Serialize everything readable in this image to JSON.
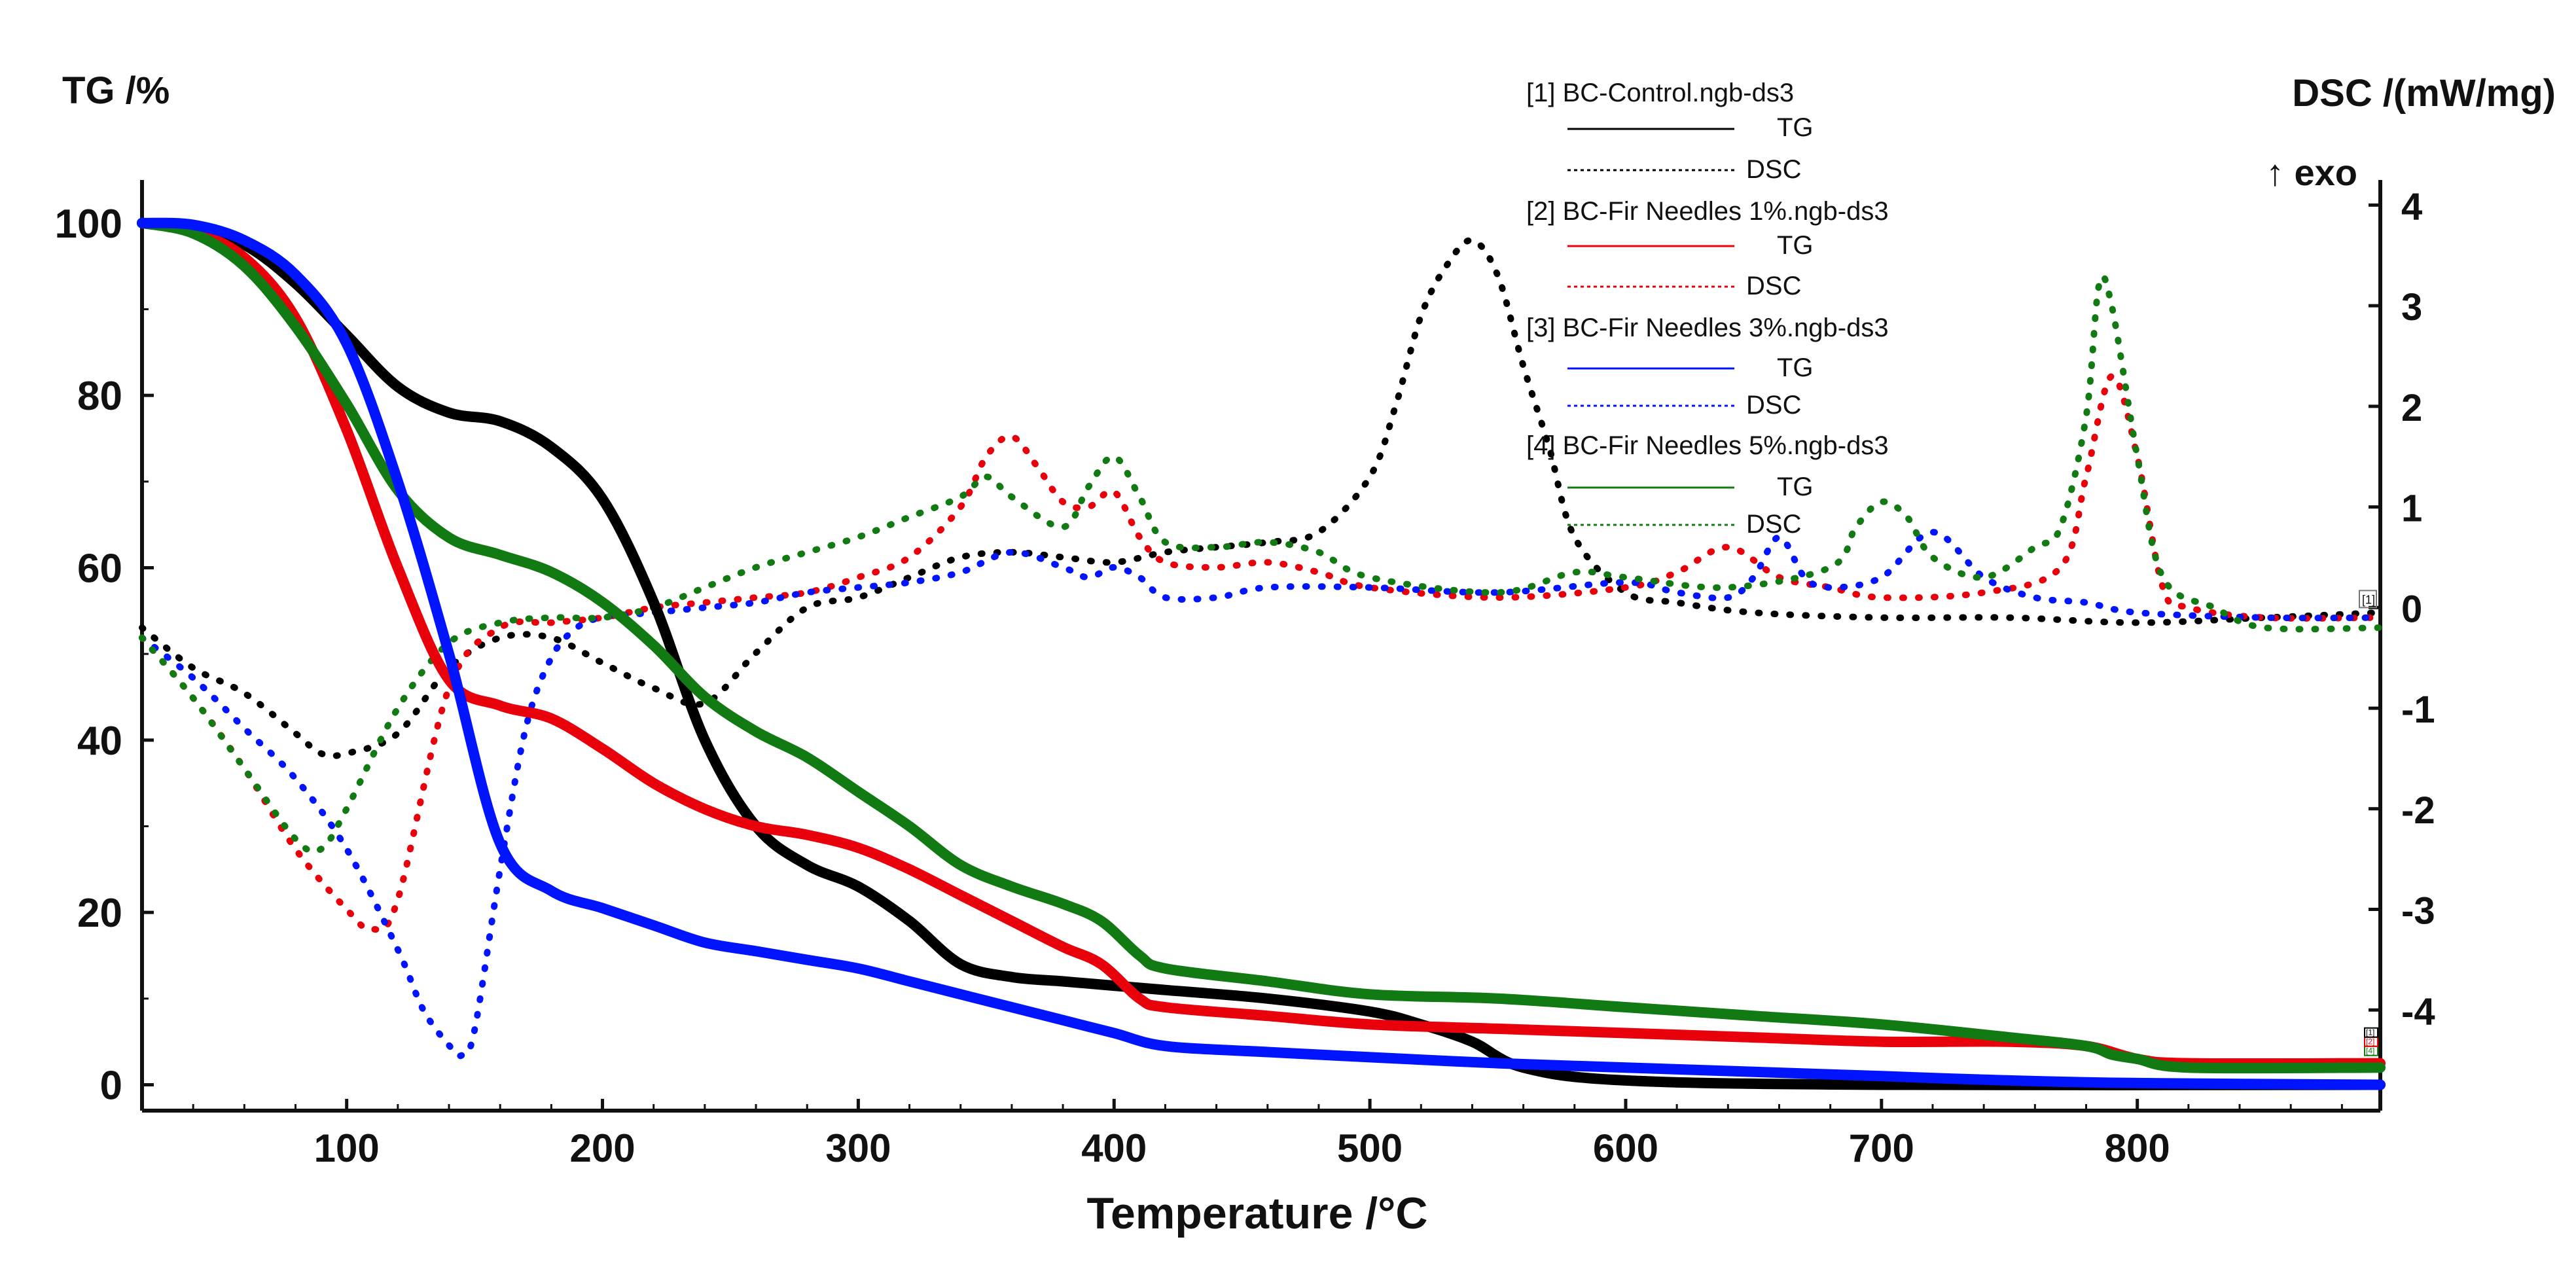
{
  "chart_data": {
    "type": "line",
    "title": "",
    "xlabel": "Temperature /°C",
    "ylabel": "TG /%",
    "y2label": "DSC /(mW/mg)",
    "y2note": "↑ exo",
    "xlim": [
      20,
      895
    ],
    "ylim": [
      -3,
      105
    ],
    "y2lim": [
      -5.0,
      4.25
    ],
    "x_ticks": [
      100,
      200,
      300,
      400,
      500,
      600,
      700,
      800
    ],
    "y_ticks": [
      0,
      20,
      40,
      60,
      80,
      100
    ],
    "y2_ticks": [
      4,
      3,
      2,
      1,
      0,
      -1,
      -2,
      -3,
      -4
    ],
    "legend_labels": {
      "tg": "TG",
      "dsc": "DSC"
    },
    "end_markers": {
      "dsc": "[1]",
      "tg": [
        "[4]",
        "[2]",
        "[1]"
      ]
    },
    "series": [
      {
        "id": 1,
        "name": "[1] BC-Control.ngb-ds3",
        "color": "#000000",
        "tg": {
          "x": [
            20,
            40,
            60,
            80,
            100,
            120,
            140,
            160,
            180,
            200,
            220,
            240,
            260,
            280,
            300,
            320,
            340,
            360,
            380,
            400,
            420,
            460,
            500,
            520,
            540,
            560,
            600,
            700,
            895
          ],
          "y": [
            100,
            99.5,
            97.5,
            93,
            87,
            81,
            78,
            77,
            74,
            68,
            56,
            40,
            30,
            25.5,
            23,
            19,
            14,
            12.5,
            12,
            11.5,
            11,
            10,
            8.5,
            7,
            5,
            2,
            0.5,
            0,
            0
          ]
        },
        "dsc": {
          "x": [
            20,
            40,
            60,
            80,
            90,
            100,
            120,
            140,
            160,
            180,
            200,
            220,
            240,
            260,
            280,
            300,
            320,
            340,
            360,
            380,
            400,
            420,
            440,
            460,
            480,
            500,
            510,
            520,
            530,
            540,
            550,
            560,
            570,
            580,
            600,
            620,
            650,
            700,
            750,
            800,
            850,
            895
          ],
          "y": [
            -0.2,
            -0.6,
            -0.85,
            -1.25,
            -1.45,
            -1.45,
            -1.25,
            -0.6,
            -0.3,
            -0.3,
            -0.55,
            -0.8,
            -0.95,
            -0.45,
            0.0,
            0.1,
            0.3,
            0.5,
            0.55,
            0.5,
            0.45,
            0.55,
            0.6,
            0.65,
            0.75,
            1.3,
            2.0,
            2.9,
            3.4,
            3.65,
            3.3,
            2.4,
            1.6,
            0.7,
            0.15,
            0.05,
            -0.05,
            -0.1,
            -0.1,
            -0.15,
            -0.1,
            -0.05
          ]
        }
      },
      {
        "id": 2,
        "name": "[2] BC-Fir Needles 1%.ngb-ds3",
        "color": "#e8000b",
        "tg": {
          "x": [
            20,
            40,
            60,
            80,
            100,
            120,
            140,
            160,
            180,
            200,
            220,
            240,
            260,
            280,
            300,
            320,
            340,
            360,
            380,
            395,
            410,
            420,
            460,
            500,
            550,
            600,
            650,
            700,
            750,
            780,
            800,
            820,
            895
          ],
          "y": [
            100,
            99,
            96,
            89,
            76,
            60,
            47,
            44,
            42.5,
            39,
            35,
            32,
            30,
            29,
            27.5,
            25,
            22,
            19,
            16,
            14,
            10,
            9,
            8,
            7,
            6.5,
            6,
            5.5,
            5,
            5,
            4.5,
            3,
            2.5,
            2.5
          ]
        },
        "dsc": {
          "x": [
            20,
            40,
            60,
            80,
            100,
            110,
            120,
            140,
            160,
            180,
            200,
            220,
            240,
            260,
            280,
            300,
            320,
            340,
            350,
            360,
            370,
            380,
            390,
            400,
            410,
            420,
            440,
            460,
            480,
            500,
            550,
            600,
            620,
            640,
            660,
            680,
            700,
            740,
            770,
            780,
            790,
            800,
            810,
            820,
            850,
            895
          ],
          "y": [
            -0.3,
            -0.9,
            -1.6,
            -2.4,
            -3.0,
            -3.2,
            -2.9,
            -0.8,
            -0.2,
            -0.15,
            -0.1,
            0.0,
            0.05,
            0.1,
            0.15,
            0.3,
            0.5,
            1.0,
            1.5,
            1.7,
            1.4,
            1.05,
            1.0,
            1.15,
            0.7,
            0.45,
            0.4,
            0.45,
            0.35,
            0.2,
            0.1,
            0.2,
            0.35,
            0.6,
            0.3,
            0.2,
            0.1,
            0.15,
            0.4,
            1.3,
            2.3,
            1.5,
            0.2,
            0.0,
            -0.1,
            -0.1
          ]
        }
      },
      {
        "id": 3,
        "name": "[3] BC-Fir Needles 3%.ngb-ds3",
        "color": "#0014ff",
        "tg": {
          "x": [
            20,
            40,
            60,
            80,
            100,
            120,
            140,
            160,
            180,
            200,
            220,
            240,
            260,
            280,
            300,
            320,
            340,
            360,
            380,
            400,
            420,
            460,
            500,
            550,
            600,
            650,
            700,
            750,
            800,
            895
          ],
          "y": [
            100,
            99.8,
            98,
            94,
            86,
            70,
            50,
            28,
            22.5,
            20.5,
            18.5,
            16.5,
            15.5,
            14.5,
            13.5,
            12,
            10.5,
            9,
            7.5,
            6,
            4.5,
            3.8,
            3.2,
            2.5,
            2,
            1.5,
            1,
            0.5,
            0.2,
            0
          ]
        },
        "dsc": {
          "x": [
            20,
            40,
            60,
            80,
            100,
            120,
            130,
            140,
            145,
            150,
            160,
            170,
            180,
            190,
            200,
            220,
            240,
            260,
            280,
            300,
            320,
            340,
            360,
            380,
            390,
            400,
            410,
            420,
            440,
            460,
            500,
            550,
            600,
            620,
            640,
            650,
            660,
            670,
            680,
            700,
            720,
            740,
            760,
            780,
            800,
            850,
            895
          ],
          "y": [
            -0.3,
            -0.7,
            -1.2,
            -1.7,
            -2.4,
            -3.4,
            -4.0,
            -4.35,
            -4.45,
            -4.2,
            -2.6,
            -1.2,
            -0.5,
            -0.2,
            -0.1,
            -0.05,
            0.0,
            0.05,
            0.15,
            0.2,
            0.25,
            0.35,
            0.55,
            0.4,
            0.3,
            0.4,
            0.3,
            0.1,
            0.1,
            0.2,
            0.2,
            0.15,
            0.25,
            0.15,
            0.1,
            0.3,
            0.7,
            0.3,
            0.2,
            0.3,
            0.75,
            0.3,
            0.1,
            0.05,
            -0.05,
            -0.1,
            -0.1
          ]
        }
      },
      {
        "id": 4,
        "name": "[4] BC-Fir Needles 5%.ngb-ds3",
        "color": "#127a12",
        "tg": {
          "x": [
            20,
            40,
            60,
            80,
            100,
            120,
            140,
            160,
            180,
            200,
            220,
            240,
            260,
            280,
            300,
            320,
            340,
            360,
            380,
            395,
            410,
            420,
            460,
            500,
            550,
            600,
            650,
            700,
            750,
            780,
            790,
            800,
            820,
            895
          ],
          "y": [
            100,
            98.8,
            95,
            88,
            79,
            69,
            63.5,
            61.5,
            59.5,
            56,
            51,
            45,
            41,
            38,
            34,
            30,
            25.5,
            23,
            21,
            19,
            15,
            13.5,
            12,
            10.5,
            10,
            9,
            8,
            7,
            5.5,
            4.5,
            3.5,
            3,
            2,
            2
          ]
        },
        "dsc": {
          "x": [
            20,
            40,
            60,
            80,
            90,
            100,
            120,
            140,
            160,
            180,
            200,
            220,
            240,
            260,
            280,
            300,
            320,
            340,
            350,
            360,
            380,
            390,
            400,
            410,
            420,
            440,
            460,
            480,
            500,
            550,
            580,
            600,
            640,
            680,
            690,
            700,
            710,
            720,
            740,
            760,
            770,
            780,
            785,
            790,
            800,
            810,
            830,
            850,
            895
          ],
          "y": [
            -0.3,
            -0.9,
            -1.6,
            -2.3,
            -2.4,
            -2.0,
            -1.0,
            -0.35,
            -0.15,
            -0.1,
            -0.1,
            0.0,
            0.2,
            0.4,
            0.55,
            0.7,
            0.9,
            1.1,
            1.3,
            1.1,
            0.8,
            1.2,
            1.5,
            1.1,
            0.65,
            0.6,
            0.65,
            0.55,
            0.3,
            0.15,
            0.35,
            0.3,
            0.2,
            0.4,
            0.8,
            1.05,
            0.9,
            0.5,
            0.3,
            0.6,
            0.8,
            1.9,
            3.2,
            3.0,
            1.5,
            0.3,
            0.0,
            -0.2,
            -0.2
          ]
        }
      }
    ]
  }
}
